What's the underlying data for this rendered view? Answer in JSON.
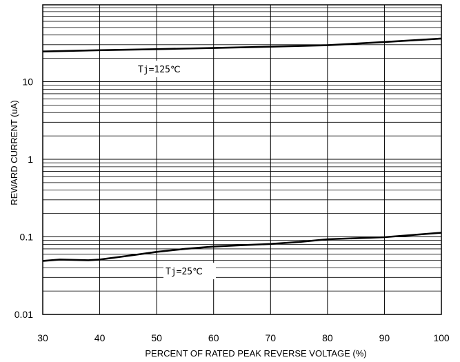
{
  "chart_data": {
    "type": "line",
    "title": "",
    "xlabel": "PERCENT OF RATED PEAK REVERSE VOLTAGE (%)",
    "ylabel": "REWARD CURRENT (uA)",
    "x_scale": "linear",
    "y_scale": "log",
    "xlim": [
      30,
      100
    ],
    "ylim": [
      0.01,
      50
    ],
    "grid": true,
    "x_ticks": [
      30,
      40,
      50,
      60,
      70,
      80,
      90,
      100
    ],
    "x_tick_labels": [
      "30",
      "40",
      "50",
      "60",
      "70",
      "80",
      "90",
      "100"
    ],
    "y_ticks": [
      0.01,
      0.1,
      1,
      10
    ],
    "y_tick_labels": [
      "0.01",
      "0.1",
      "1",
      "10"
    ],
    "series": [
      {
        "name": "Tj=125℃",
        "x": [
          30,
          40,
          50,
          60,
          70,
          80,
          90,
          100
        ],
        "y": [
          24.5,
          25.5,
          26.3,
          27.2,
          28.3,
          29.5,
          32.5,
          36.0
        ]
      },
      {
        "name": "Tj=25℃",
        "x": [
          30,
          33,
          38,
          40,
          45,
          50,
          55,
          60,
          65,
          70,
          75,
          80,
          90,
          100
        ],
        "y": [
          0.049,
          0.051,
          0.05,
          0.051,
          0.057,
          0.064,
          0.07,
          0.075,
          0.078,
          0.081,
          0.086,
          0.093,
          0.099,
          0.113
        ]
      }
    ],
    "annotations": [
      {
        "text": "Tj=125℃",
        "series": 0
      },
      {
        "text": "Tj=25℃",
        "series": 1
      }
    ]
  }
}
